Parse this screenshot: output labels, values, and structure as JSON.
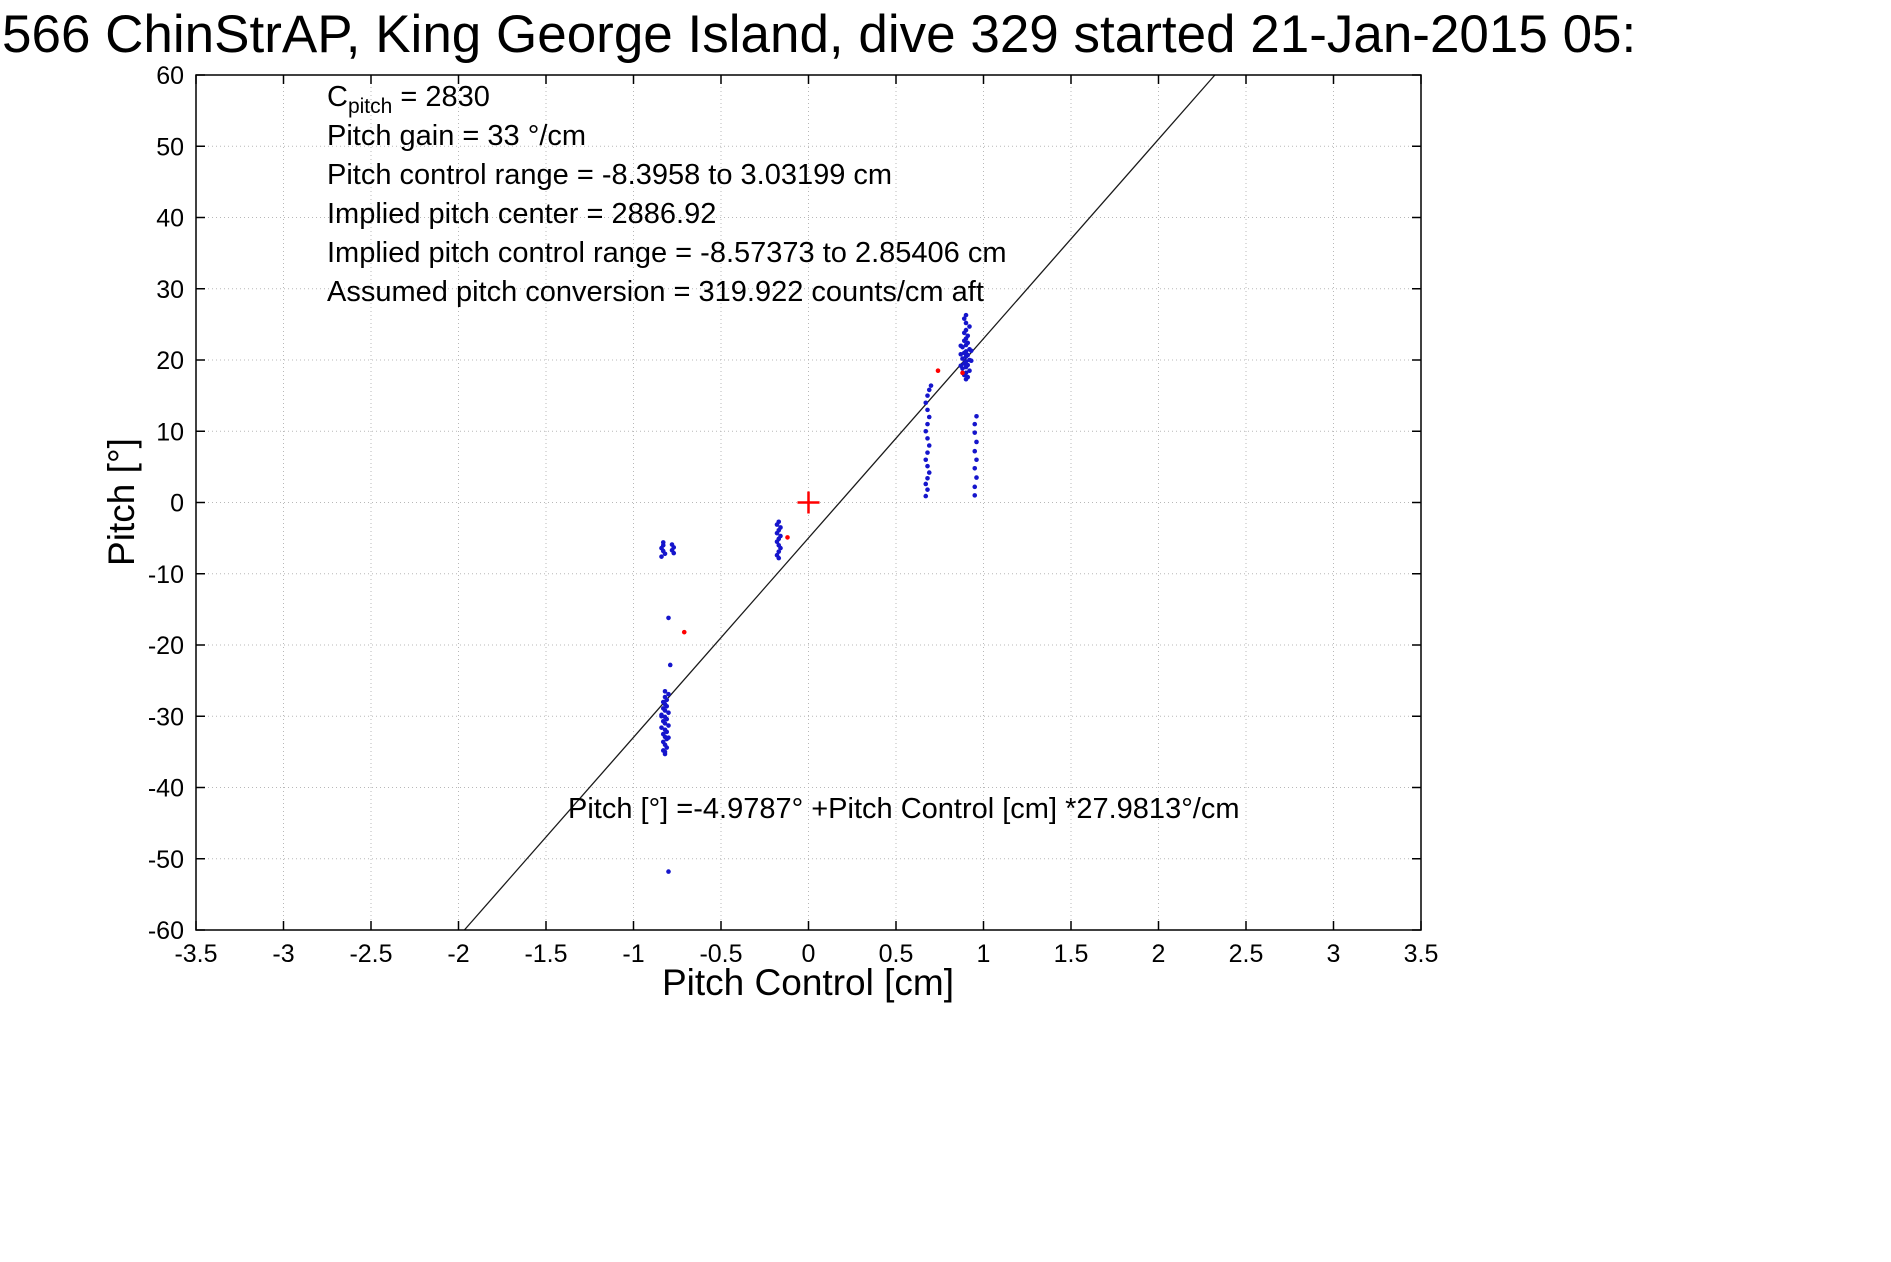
{
  "chart_data": {
    "type": "scatter",
    "title": "566 ChinStrAP, King George Island, dive 329 started 21-Jan-2015 05:",
    "xlabel": "Pitch Control [cm]",
    "ylabel": "Pitch [°]",
    "xlim": [
      -3.5,
      3.5
    ],
    "ylim": [
      -60,
      60
    ],
    "xticks": [
      -3.5,
      -3,
      -2.5,
      -2,
      -1.5,
      -1,
      -0.5,
      0,
      0.5,
      1,
      1.5,
      2,
      2.5,
      3,
      3.5
    ],
    "xtick_labels": [
      "-3.5",
      "-3",
      "-2.5",
      "-2",
      "-1.5",
      "-1",
      "-0.5",
      "0",
      "0.5",
      "1",
      "1.5",
      "2",
      "2.5",
      "3",
      "3.5"
    ],
    "yticks": [
      -60,
      -50,
      -40,
      -30,
      -20,
      -10,
      0,
      10,
      20,
      30,
      40,
      50,
      60
    ],
    "ytick_labels": [
      "-60",
      "-50",
      "-40",
      "-30",
      "-20",
      "-10",
      "0",
      "10",
      "20",
      "30",
      "40",
      "50",
      "60"
    ],
    "grid": true,
    "legend": "none",
    "fit_line": {
      "slope": 27.9813,
      "intercept": -4.9787,
      "color": "#1a1a1a"
    },
    "series": [
      {
        "name": "pitch-observations",
        "marker": "dot",
        "color": "#1515cc",
        "points": [
          [
            -0.82,
            -35.3
          ],
          [
            -0.83,
            -34.8
          ],
          [
            -0.81,
            -34.4
          ],
          [
            -0.82,
            -34.0
          ],
          [
            -0.83,
            -33.6
          ],
          [
            -0.81,
            -33.2
          ],
          [
            -0.82,
            -32.9
          ],
          [
            -0.83,
            -32.5
          ],
          [
            -0.81,
            -32.2
          ],
          [
            -0.82,
            -31.9
          ],
          [
            -0.84,
            -31.6
          ],
          [
            -0.8,
            -31.3
          ],
          [
            -0.82,
            -31.0
          ],
          [
            -0.83,
            -30.7
          ],
          [
            -0.81,
            -30.4
          ],
          [
            -0.82,
            -30.1
          ],
          [
            -0.84,
            -29.8
          ],
          [
            -0.8,
            -29.5
          ],
          [
            -0.82,
            -29.2
          ],
          [
            -0.83,
            -28.9
          ],
          [
            -0.81,
            -28.6
          ],
          [
            -0.82,
            -28.3
          ],
          [
            -0.83,
            -28.0
          ],
          [
            -0.81,
            -27.7
          ],
          [
            -0.82,
            -27.3
          ],
          [
            -0.8,
            -26.9
          ],
          [
            -0.82,
            -26.5
          ],
          [
            -0.84,
            -30.0
          ],
          [
            -0.8,
            -33.0
          ],
          [
            -0.82,
            -35.0
          ],
          [
            -0.8,
            -51.8
          ],
          [
            -0.79,
            -22.8
          ],
          [
            -0.8,
            -16.2
          ],
          [
            -0.83,
            -5.6
          ],
          [
            -0.83,
            -6.0
          ],
          [
            -0.84,
            -6.4
          ],
          [
            -0.83,
            -6.8
          ],
          [
            -0.82,
            -7.2
          ],
          [
            -0.84,
            -7.6
          ],
          [
            -0.78,
            -5.9
          ],
          [
            -0.77,
            -6.3
          ],
          [
            -0.78,
            -6.7
          ],
          [
            -0.77,
            -7.1
          ],
          [
            -0.17,
            -2.7
          ],
          [
            -0.18,
            -3.1
          ],
          [
            -0.16,
            -3.5
          ],
          [
            -0.17,
            -3.9
          ],
          [
            -0.18,
            -4.3
          ],
          [
            -0.16,
            -4.7
          ],
          [
            -0.17,
            -5.1
          ],
          [
            -0.18,
            -5.5
          ],
          [
            -0.17,
            -6.0
          ],
          [
            -0.16,
            -6.4
          ],
          [
            -0.17,
            -6.9
          ],
          [
            -0.18,
            -7.4
          ],
          [
            -0.17,
            -7.8
          ],
          [
            0.67,
            0.9
          ],
          [
            0.68,
            1.8
          ],
          [
            0.67,
            2.6
          ],
          [
            0.68,
            3.4
          ],
          [
            0.69,
            4.2
          ],
          [
            0.68,
            5.1
          ],
          [
            0.67,
            6.0
          ],
          [
            0.68,
            7.0
          ],
          [
            0.69,
            8.0
          ],
          [
            0.68,
            9.0
          ],
          [
            0.67,
            10.0
          ],
          [
            0.68,
            11.0
          ],
          [
            0.69,
            12.0
          ],
          [
            0.68,
            13.0
          ],
          [
            0.67,
            14.0
          ],
          [
            0.68,
            15.0
          ],
          [
            0.69,
            15.8
          ],
          [
            0.7,
            16.4
          ],
          [
            0.9,
            17.3
          ],
          [
            0.91,
            17.6
          ],
          [
            0.89,
            17.9
          ],
          [
            0.9,
            18.2
          ],
          [
            0.92,
            18.5
          ],
          [
            0.88,
            18.8
          ],
          [
            0.9,
            19.0
          ],
          [
            0.91,
            19.3
          ],
          [
            0.89,
            19.5
          ],
          [
            0.9,
            19.8
          ],
          [
            0.92,
            20.0
          ],
          [
            0.88,
            20.2
          ],
          [
            0.9,
            20.5
          ],
          [
            0.91,
            20.7
          ],
          [
            0.89,
            21.0
          ],
          [
            0.9,
            21.2
          ],
          [
            0.92,
            21.5
          ],
          [
            0.88,
            21.8
          ],
          [
            0.9,
            22.1
          ],
          [
            0.91,
            22.4
          ],
          [
            0.89,
            22.7
          ],
          [
            0.9,
            23.0
          ],
          [
            0.91,
            23.4
          ],
          [
            0.89,
            23.8
          ],
          [
            0.9,
            24.2
          ],
          [
            0.92,
            24.7
          ],
          [
            0.9,
            25.2
          ],
          [
            0.89,
            25.8
          ],
          [
            0.9,
            26.3
          ],
          [
            0.87,
            19.2
          ],
          [
            0.93,
            19.9
          ],
          [
            0.87,
            20.8
          ],
          [
            0.93,
            21.3
          ],
          [
            0.87,
            22.0
          ],
          [
            0.95,
            1.0
          ],
          [
            0.95,
            2.2
          ],
          [
            0.96,
            3.5
          ],
          [
            0.95,
            4.8
          ],
          [
            0.96,
            6.0
          ],
          [
            0.95,
            7.2
          ],
          [
            0.96,
            8.5
          ],
          [
            0.95,
            9.8
          ],
          [
            0.95,
            11.0
          ],
          [
            0.96,
            12.1
          ]
        ]
      },
      {
        "name": "flagged-observations",
        "marker": "dot",
        "color": "#ff0000",
        "points": [
          [
            -0.71,
            -18.2
          ],
          [
            -0.12,
            -4.9
          ],
          [
            0.74,
            18.5
          ],
          [
            0.88,
            18.2
          ]
        ]
      },
      {
        "name": "pitch-center",
        "marker": "plus",
        "color": "#ff0000",
        "points": [
          [
            0,
            0
          ]
        ]
      }
    ]
  },
  "annotations": {
    "c_label": "C",
    "c_sub": "pitch",
    "c_rest": " = 2830",
    "lines": [
      "Pitch gain = 33 °/cm",
      "Pitch control range = -8.3958 to 3.03199 cm",
      "Implied pitch center = 2886.92",
      "Implied pitch control range = -8.57373 to 2.85406 cm",
      "Assumed pitch conversion = 319.922 counts/cm aft"
    ],
    "equation": "Pitch [°] =-4.9787° +Pitch Control [cm] *27.9813°/cm"
  }
}
